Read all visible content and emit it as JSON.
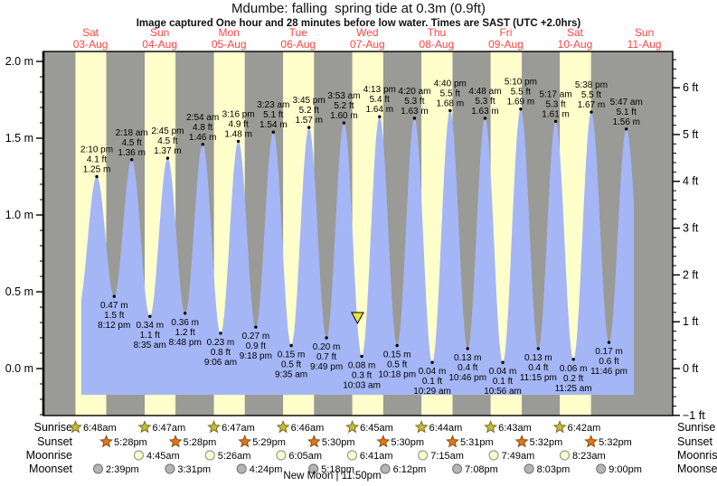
{
  "chart_data": {
    "type": "area",
    "title": "Mdumbe: falling  spring tide at 0.3m (0.9ft)",
    "subtitle": "Image captured One hour and 28 minutes before low water. Times are SAST (UTC +2.0hrs)",
    "days": [
      {
        "name": "Sat",
        "date": "03-Aug"
      },
      {
        "name": "Sun",
        "date": "04-Aug"
      },
      {
        "name": "Mon",
        "date": "05-Aug"
      },
      {
        "name": "Tue",
        "date": "06-Aug"
      },
      {
        "name": "Wed",
        "date": "07-Aug"
      },
      {
        "name": "Thu",
        "date": "08-Aug"
      },
      {
        "name": "Fri",
        "date": "09-Aug"
      },
      {
        "name": "Sat",
        "date": "10-Aug"
      },
      {
        "name": "Sun",
        "date": "11-Aug"
      }
    ],
    "y_axis_left": {
      "unit": "m",
      "tick_labels": [
        "0.0 m",
        "0.5 m",
        "1.0 m",
        "1.5 m",
        "2.0 m"
      ],
      "range": [
        -0.31,
        2.07
      ]
    },
    "y_axis_right": {
      "unit": "ft",
      "tick_labels": [
        "−1 ft",
        "0 ft",
        "1 ft",
        "2 ft",
        "3 ft",
        "4 ft",
        "5 ft",
        "6 ft"
      ],
      "range": [
        -1.0,
        6.8
      ]
    },
    "tide_events": [
      {
        "day": 0,
        "type": "high",
        "time": "2:10 pm",
        "ft": "4.1 ft",
        "m": "1.25 m"
      },
      {
        "day": 0,
        "type": "low",
        "time": "8:12 pm",
        "ft": "1.5 ft",
        "m": "0.47 m"
      },
      {
        "day": 1,
        "type": "high",
        "time": "2:18 am",
        "ft": "4.5 ft",
        "m": "1.36 m"
      },
      {
        "day": 1,
        "type": "low",
        "time": "8:35 am",
        "ft": "1.1 ft",
        "m": "0.34 m"
      },
      {
        "day": 1,
        "type": "high",
        "time": "2:45 pm",
        "ft": "4.5 ft",
        "m": "1.37 m"
      },
      {
        "day": 1,
        "type": "low",
        "time": "8:48 pm",
        "ft": "1.2 ft",
        "m": "0.36 m"
      },
      {
        "day": 2,
        "type": "high",
        "time": "2:54 am",
        "ft": "4.8 ft",
        "m": "1.46 m"
      },
      {
        "day": 2,
        "type": "low",
        "time": "9:06 am",
        "ft": "0.8 ft",
        "m": "0.23 m"
      },
      {
        "day": 2,
        "type": "high",
        "time": "3:16 pm",
        "ft": "4.9 ft",
        "m": "1.48 m"
      },
      {
        "day": 2,
        "type": "low",
        "time": "9:18 pm",
        "ft": "0.9 ft",
        "m": "0.27 m"
      },
      {
        "day": 3,
        "type": "high",
        "time": "3:23 am",
        "ft": "5.1 ft",
        "m": "1.54 m"
      },
      {
        "day": 3,
        "type": "low",
        "time": "9:35 am",
        "ft": "0.5 ft",
        "m": "0.15 m"
      },
      {
        "day": 3,
        "type": "high",
        "time": "3:45 pm",
        "ft": "5.2 ft",
        "m": "1.57 m"
      },
      {
        "day": 3,
        "type": "low",
        "time": "9:49 pm",
        "ft": "0.7 ft",
        "m": "0.20 m"
      },
      {
        "day": 4,
        "type": "high",
        "time": "3:53 am",
        "ft": "5.2 ft",
        "m": "1.60 m"
      },
      {
        "day": 4,
        "type": "low",
        "time": "10:03 am",
        "ft": "0.3 ft",
        "m": "0.08 m"
      },
      {
        "day": 4,
        "type": "high",
        "time": "4:13 pm",
        "ft": "5.4 ft",
        "m": "1.64 m"
      },
      {
        "day": 4,
        "type": "low",
        "time": "10:18 pm",
        "ft": "0.5 ft",
        "m": "0.15 m"
      },
      {
        "day": 5,
        "type": "high",
        "time": "4:20 am",
        "ft": "5.3 ft",
        "m": "1.63 m"
      },
      {
        "day": 5,
        "type": "low",
        "time": "10:29 am",
        "ft": "0.1 ft",
        "m": "0.04 m"
      },
      {
        "day": 5,
        "type": "high",
        "time": "4:40 pm",
        "ft": "5.5 ft",
        "m": "1.68 m"
      },
      {
        "day": 5,
        "type": "low",
        "time": "10:46 pm",
        "ft": "0.4 ft",
        "m": "0.13 m"
      },
      {
        "day": 6,
        "type": "high",
        "time": "4:48 am",
        "ft": "5.3 ft",
        "m": "1.63 m"
      },
      {
        "day": 6,
        "type": "low",
        "time": "10:56 am",
        "ft": "0.1 ft",
        "m": "0.04 m"
      },
      {
        "day": 6,
        "type": "high",
        "time": "5:10 pm",
        "ft": "5.5 ft",
        "m": "1.69 m"
      },
      {
        "day": 6,
        "type": "low",
        "time": "11:15 pm",
        "ft": "0.4 ft",
        "m": "0.13 m"
      },
      {
        "day": 7,
        "type": "high",
        "time": "5:17 am",
        "ft": "5.3 ft",
        "m": "1.61 m"
      },
      {
        "day": 7,
        "type": "low",
        "time": "11:25 am",
        "ft": "0.2 ft",
        "m": "0.06 m"
      },
      {
        "day": 7,
        "type": "high",
        "time": "5:38 pm",
        "ft": "5.5 ft",
        "m": "1.67 m"
      },
      {
        "day": 7,
        "type": "low",
        "time": "11:46 pm",
        "ft": "0.6 ft",
        "m": "0.17 m"
      },
      {
        "day": 8,
        "type": "high",
        "time": "5:47 am",
        "ft": "5.1 ft",
        "m": "1.56 m"
      }
    ],
    "current_marker": {
      "day": 4,
      "time": "8:35 am"
    },
    "astro": {
      "row_labels": [
        "Sunrise",
        "Sunset",
        "Moonrise",
        "Moonset"
      ],
      "sunrise": [
        {
          "day": 0,
          "time": "6:48am"
        },
        {
          "day": 1,
          "time": "6:47am"
        },
        {
          "day": 2,
          "time": "6:47am"
        },
        {
          "day": 3,
          "time": "6:46am"
        },
        {
          "day": 4,
          "time": "6:45am"
        },
        {
          "day": 5,
          "time": "6:44am"
        },
        {
          "day": 6,
          "time": "6:43am"
        },
        {
          "day": 7,
          "time": "6:42am"
        }
      ],
      "sunset": [
        {
          "day": 0,
          "time": "5:28pm"
        },
        {
          "day": 1,
          "time": "5:28pm"
        },
        {
          "day": 2,
          "time": "5:29pm"
        },
        {
          "day": 3,
          "time": "5:30pm"
        },
        {
          "day": 4,
          "time": "5:30pm"
        },
        {
          "day": 5,
          "time": "5:31pm"
        },
        {
          "day": 6,
          "time": "5:32pm"
        },
        {
          "day": 7,
          "time": "5:32pm"
        }
      ],
      "moonrise": [
        {
          "day": 1,
          "time": "4:45am"
        },
        {
          "day": 2,
          "time": "5:26am"
        },
        {
          "day": 3,
          "time": "6:05am"
        },
        {
          "day": 4,
          "time": "6:41am"
        },
        {
          "day": 5,
          "time": "7:15am"
        },
        {
          "day": 6,
          "time": "7:49am"
        },
        {
          "day": 7,
          "time": "8:23am"
        }
      ],
      "moonset": [
        {
          "day": 0,
          "time": "2:39pm"
        },
        {
          "day": 1,
          "time": "3:31pm"
        },
        {
          "day": 2,
          "time": "4:24pm"
        },
        {
          "day": 3,
          "time": "5:18pm"
        },
        {
          "day": 4,
          "time": "6:12pm"
        },
        {
          "day": 5,
          "time": "7:08pm"
        },
        {
          "day": 6,
          "time": "8:03pm"
        },
        {
          "day": 7,
          "time": "9:00pm"
        }
      ]
    },
    "new_moon": {
      "label": "New Moon | 11:50pm",
      "day": 3,
      "time": "11:50pm"
    },
    "colors": {
      "night_band": "#9a9a96",
      "day_band": "#ffffcc",
      "tide_fill": "#a5b6f6",
      "date_text": "#ff4444",
      "sunrise_icon": "#c8b93f",
      "sunset_icon": "#e2761b",
      "moonrise_icon": "#ffffcc",
      "moonset_icon": "#b4b4b4",
      "marker_fill": "#ece73e"
    }
  }
}
